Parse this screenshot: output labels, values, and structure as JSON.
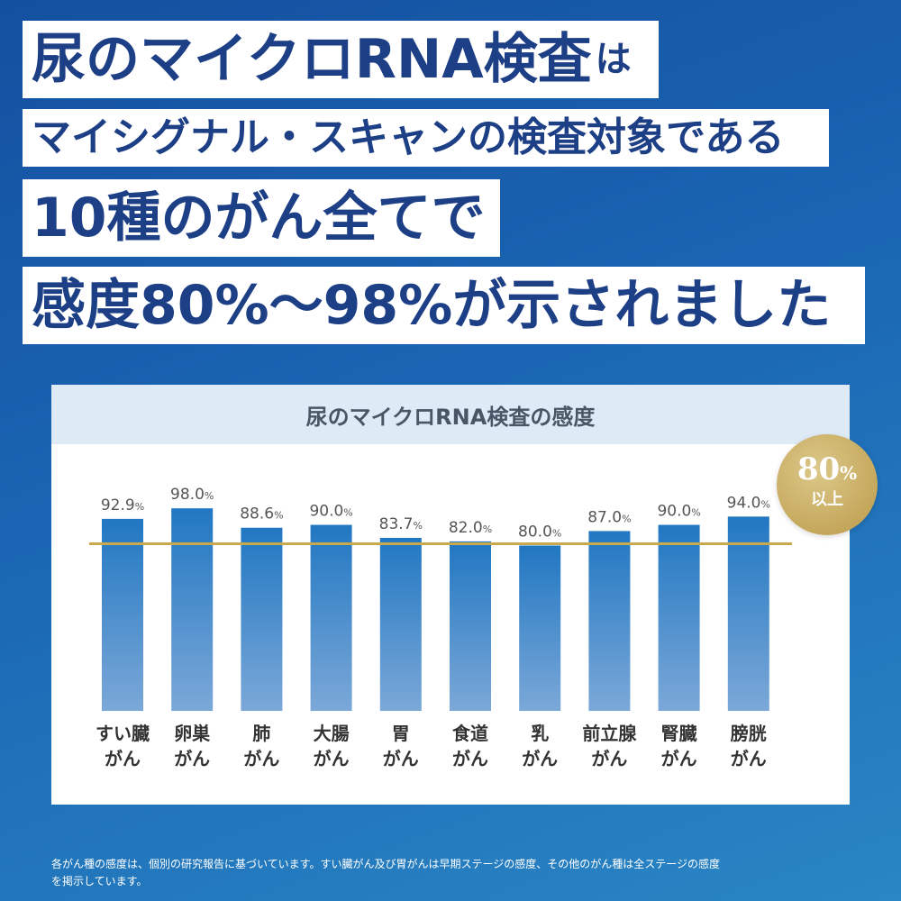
{
  "headline": {
    "line1_main": "尿のマイクロRNA検査",
    "line1_particle": "は",
    "line2": "マイシグナル・スキャンの検査対象である",
    "line3": "10種のがん全てで",
    "line4": "感度80%〜98%が示されました"
  },
  "badge": {
    "value": "80",
    "unit": "%",
    "label": "以上"
  },
  "footnote": {
    "line1": "各がん種の感度は、個別の研究報告に基づいています。すい臓がん及び胃がんは早期ステージの感度、その他のがん種は全ステージの感度",
    "line2": "を掲示しています。"
  },
  "chart_data": {
    "type": "bar",
    "title": "尿のマイクロRNA検査の感度",
    "categories": [
      [
        "すい臓",
        "がん"
      ],
      [
        "卵巣",
        "がん"
      ],
      [
        "肺",
        "がん"
      ],
      [
        "大腸",
        "がん"
      ],
      [
        "胃",
        "がん"
      ],
      [
        "食道",
        "がん"
      ],
      [
        "乳",
        "がん"
      ],
      [
        "前立腺",
        "がん"
      ],
      [
        "腎臓",
        "がん"
      ],
      [
        "膀胱",
        "がん"
      ]
    ],
    "values": [
      92.9,
      98.0,
      88.6,
      90.0,
      83.7,
      82.0,
      80.0,
      87.0,
      90.0,
      94.0
    ],
    "value_labels": [
      "92.9",
      "98.0",
      "88.6",
      "90.0",
      "83.7",
      "82.0",
      "80.0",
      "87.0",
      "90.0",
      "94.0"
    ],
    "value_unit": "%",
    "reference_line": 80,
    "ylim": [
      0,
      102
    ],
    "grid": false,
    "colors": {
      "bar_top": "#2177c2",
      "bar_bottom": "#7ba8d8",
      "reference": "#c9a94d",
      "label": "#555555"
    }
  }
}
